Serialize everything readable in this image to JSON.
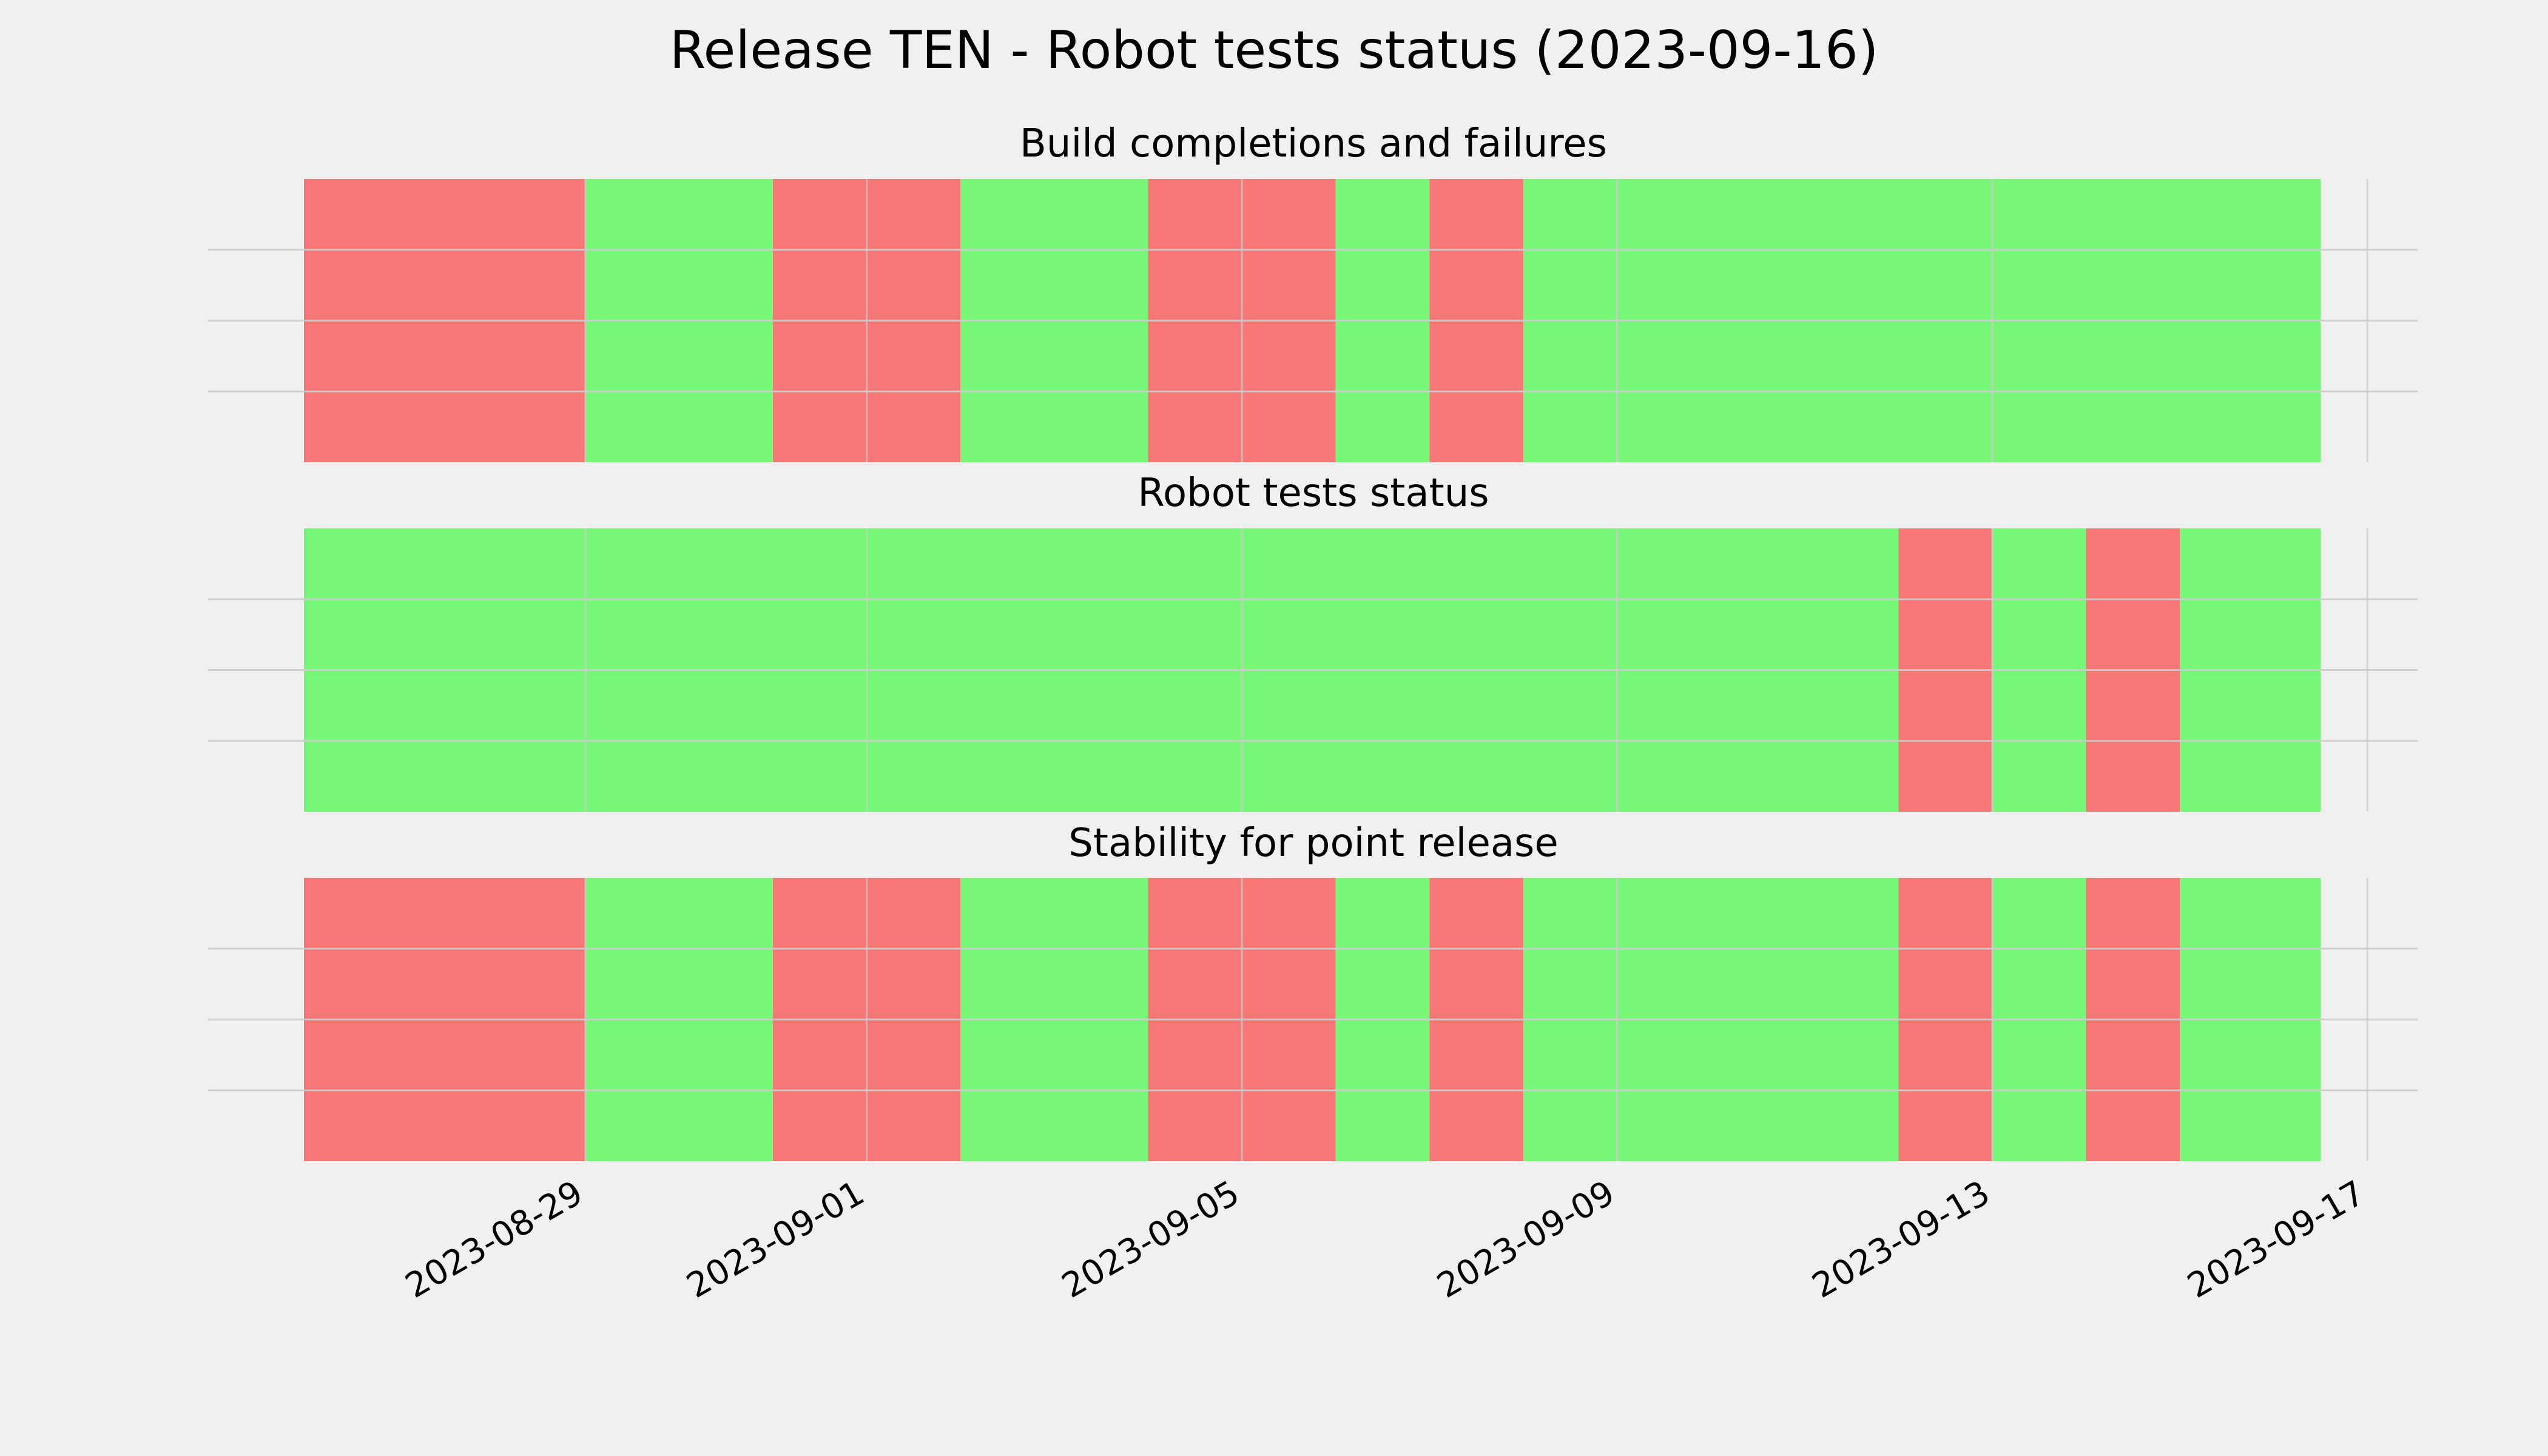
{
  "chart_data": {
    "type": "timeline",
    "title": "Release TEN - Robot tests status (2023-09-16)",
    "x_range": [
      "2023-08-26",
      "2023-09-16T12:00"
    ],
    "x_ticks": [
      "2023-08-29",
      "2023-09-01",
      "2023-09-05",
      "2023-09-09",
      "2023-09-13",
      "2023-09-17"
    ],
    "tick_labels": [
      "2023-08-29",
      "2023-09-01",
      "2023-09-05",
      "2023-09-09",
      "2023-09-13",
      "2023-09-17"
    ],
    "grid": true,
    "colors": {
      "pass": "#77f777",
      "fail": "#f77777",
      "background": "#f0f0f0",
      "grid": "#cbcbcb"
    },
    "panels": [
      {
        "title": "Build completions and failures",
        "segments": [
          {
            "start": "2023-08-26T00:00",
            "end": "2023-08-29T00:00",
            "status": "fail"
          },
          {
            "start": "2023-08-29T00:00",
            "end": "2023-08-31T00:00",
            "status": "pass"
          },
          {
            "start": "2023-08-31T00:00",
            "end": "2023-09-02T00:00",
            "status": "fail"
          },
          {
            "start": "2023-09-02T00:00",
            "end": "2023-09-04T00:00",
            "status": "pass"
          },
          {
            "start": "2023-09-04T00:00",
            "end": "2023-09-06T00:00",
            "status": "fail"
          },
          {
            "start": "2023-09-06T00:00",
            "end": "2023-09-07T00:00",
            "status": "pass"
          },
          {
            "start": "2023-09-07T00:00",
            "end": "2023-09-08T00:00",
            "status": "fail"
          },
          {
            "start": "2023-09-08T00:00",
            "end": "2023-09-16T12:00",
            "status": "pass"
          }
        ]
      },
      {
        "title": "Robot tests status",
        "segments": [
          {
            "start": "2023-08-26T00:00",
            "end": "2023-09-12T00:00",
            "status": "pass"
          },
          {
            "start": "2023-09-12T00:00",
            "end": "2023-09-13T00:00",
            "status": "fail"
          },
          {
            "start": "2023-09-13T00:00",
            "end": "2023-09-14T00:00",
            "status": "pass"
          },
          {
            "start": "2023-09-14T00:00",
            "end": "2023-09-15T00:00",
            "status": "fail"
          },
          {
            "start": "2023-09-15T00:00",
            "end": "2023-09-16T12:00",
            "status": "pass"
          }
        ]
      },
      {
        "title": "Stability for point release",
        "segments": [
          {
            "start": "2023-08-26T00:00",
            "end": "2023-08-29T00:00",
            "status": "fail"
          },
          {
            "start": "2023-08-29T00:00",
            "end": "2023-08-31T00:00",
            "status": "pass"
          },
          {
            "start": "2023-08-31T00:00",
            "end": "2023-09-02T00:00",
            "status": "fail"
          },
          {
            "start": "2023-09-02T00:00",
            "end": "2023-09-04T00:00",
            "status": "pass"
          },
          {
            "start": "2023-09-04T00:00",
            "end": "2023-09-06T00:00",
            "status": "fail"
          },
          {
            "start": "2023-09-06T00:00",
            "end": "2023-09-07T00:00",
            "status": "pass"
          },
          {
            "start": "2023-09-07T00:00",
            "end": "2023-09-08T00:00",
            "status": "fail"
          },
          {
            "start": "2023-09-08T00:00",
            "end": "2023-09-12T00:00",
            "status": "pass"
          },
          {
            "start": "2023-09-12T00:00",
            "end": "2023-09-13T00:00",
            "status": "fail"
          },
          {
            "start": "2023-09-13T00:00",
            "end": "2023-09-14T00:00",
            "status": "pass"
          },
          {
            "start": "2023-09-14T00:00",
            "end": "2023-09-15T00:00",
            "status": "fail"
          },
          {
            "start": "2023-09-15T00:00",
            "end": "2023-09-16T12:00",
            "status": "pass"
          }
        ]
      }
    ]
  }
}
